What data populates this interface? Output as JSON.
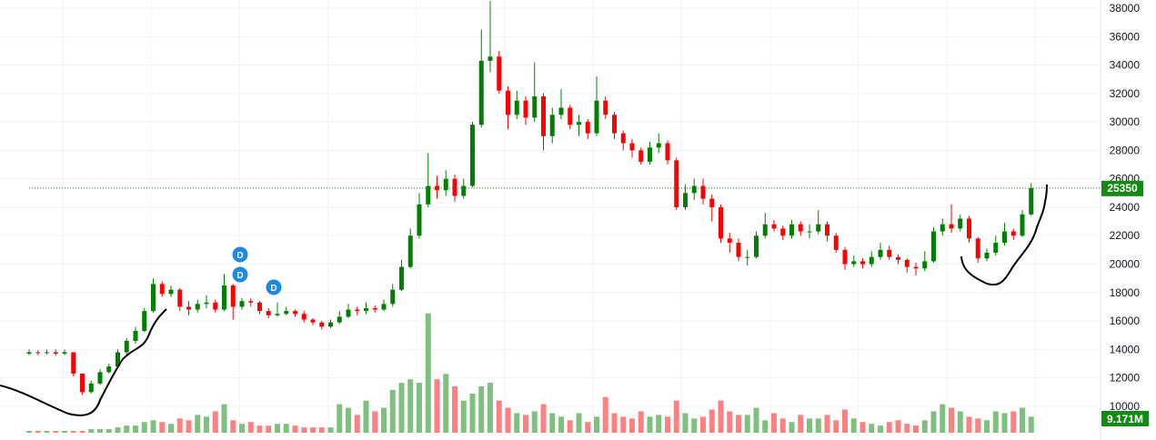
{
  "chart_data": {
    "type": "candlestick",
    "ylim": [
      10000,
      38000
    ],
    "y_ticks": [
      10000,
      12000,
      14000,
      16000,
      18000,
      20000,
      22000,
      24000,
      26000,
      28000,
      30000,
      32000,
      34000,
      36000,
      38000
    ],
    "grid": true,
    "last_price": {
      "label": "25350",
      "value": 25350
    },
    "last_volume": {
      "label": "9.171M",
      "value_millions": 9.171
    },
    "dividend_markers": [
      {
        "label": "D",
        "candle": 25,
        "price_offset": 3
      },
      {
        "label": "D",
        "candle": 25,
        "price_offset": 2
      },
      {
        "label": "D",
        "candle": 28,
        "price_offset": 1
      }
    ],
    "colors": {
      "up": "#008000",
      "down": "#ff0000",
      "up_volume": "#7fc07f",
      "down_volume": "#ff8080",
      "badge": "#1e88e5",
      "last": "#138a13"
    },
    "open": [
      13700,
      13800,
      13750,
      13800,
      13700,
      13800,
      12300,
      11000,
      11600,
      12400,
      12800,
      13800,
      14600,
      15300,
      16700,
      18600,
      17900,
      18200,
      17000,
      16800,
      17200,
      17300,
      16800,
      18500,
      17000,
      17400,
      17300,
      16700,
      16400,
      16500,
      16700,
      16500,
      16100,
      15900,
      15600,
      15900,
      16300,
      16800,
      16700,
      16900,
      16800,
      17200,
      18200,
      19800,
      22000,
      24200,
      25500,
      25200,
      26000,
      24800,
      25500,
      29800,
      34300,
      34600,
      32200,
      30500,
      31500,
      30300,
      31800,
      29000,
      30500,
      31000,
      29800,
      30000,
      29200,
      31500,
      30500,
      29200,
      28500,
      28000,
      27200,
      28200,
      28500,
      27300,
      24000,
      25000,
      25500,
      24600,
      24000,
      21800,
      21500,
      20500,
      20500,
      22000,
      22800,
      22500,
      22000,
      22800,
      22300,
      22300,
      22800,
      22000,
      21000,
      20000,
      20200,
      20000,
      20500,
      21000,
      20500,
      20300,
      19800,
      19700,
      20200,
      22300,
      22800,
      22500,
      23200,
      21800,
      20400,
      20800,
      21500,
      22300,
      22000,
      23500
    ],
    "high": [
      14000,
      13950,
      14000,
      14000,
      14000,
      13800,
      12300,
      11800,
      12600,
      13000,
      14000,
      14800,
      15600,
      16900,
      19000,
      18800,
      18500,
      18300,
      17400,
      17500,
      17800,
      17500,
      19300,
      18600,
      17600,
      17600,
      17400,
      16900,
      17300,
      17000,
      16800,
      16700,
      16200,
      16000,
      16100,
      16700,
      17200,
      17000,
      17300,
      17100,
      17500,
      18600,
      20300,
      22500,
      25000,
      27800,
      26200,
      26600,
      26300,
      26000,
      30000,
      36500,
      38500,
      35000,
      32500,
      32200,
      31800,
      34200,
      32000,
      31000,
      32300,
      31200,
      30500,
      30200,
      33200,
      31800,
      30700,
      29400,
      28800,
      28200,
      28600,
      29200,
      28700,
      27500,
      25600,
      26000,
      26000,
      24900,
      24200,
      22200,
      21800,
      21000,
      22300,
      23600,
      23100,
      22700,
      23100,
      23000,
      22800,
      23800,
      23000,
      22200,
      21200,
      20600,
      20400,
      20900,
      21500,
      21300,
      20700,
      20400,
      20100,
      20900,
      22600,
      23200,
      24200,
      23500,
      23400,
      21900,
      21100,
      22000,
      22900,
      22500,
      23800,
      25700
    ],
    "low": [
      13600,
      13600,
      13650,
      13550,
      13600,
      12100,
      10800,
      10900,
      11500,
      12300,
      12700,
      13600,
      14400,
      15200,
      16600,
      17700,
      17700,
      16700,
      16400,
      16600,
      16900,
      16600,
      16700,
      16100,
      16800,
      17000,
      16500,
      16200,
      16300,
      16400,
      16300,
      15900,
      15700,
      15400,
      15500,
      15800,
      16200,
      16400,
      16500,
      16600,
      16700,
      17000,
      18100,
      19700,
      21800,
      24000,
      24600,
      24800,
      24400,
      24600,
      25400,
      29600,
      33500,
      32000,
      29500,
      30200,
      29800,
      30000,
      28000,
      28500,
      30200,
      29500,
      29000,
      28800,
      29000,
      30200,
      28800,
      28000,
      27500,
      27000,
      27000,
      27800,
      27000,
      23800,
      23800,
      24500,
      24200,
      23000,
      21500,
      20800,
      20200,
      19900,
      20400,
      21800,
      22300,
      21700,
      21800,
      22000,
      21800,
      22100,
      21600,
      20800,
      19600,
      19800,
      19700,
      19800,
      20300,
      20300,
      20000,
      19400,
      19200,
      19500,
      20100,
      22000,
      22200,
      22300,
      21500,
      20100,
      20200,
      20600,
      21300,
      21700,
      21900,
      23400
    ],
    "close": [
      13800,
      13750,
      13800,
      13700,
      13800,
      12300,
      11000,
      11600,
      12400,
      12800,
      13800,
      14600,
      15300,
      16700,
      18600,
      17900,
      18200,
      17000,
      16800,
      17200,
      17300,
      16800,
      18500,
      17000,
      17400,
      17300,
      16700,
      16400,
      16500,
      16700,
      16500,
      16100,
      15900,
      15600,
      15900,
      16300,
      16800,
      16700,
      16900,
      16800,
      17200,
      18200,
      19800,
      22000,
      24200,
      25500,
      25200,
      26000,
      24800,
      25500,
      29800,
      34300,
      34600,
      32200,
      30500,
      31500,
      30300,
      31800,
      29000,
      30500,
      31000,
      29800,
      30000,
      29200,
      31500,
      30500,
      29200,
      28500,
      28000,
      27200,
      28200,
      28500,
      27300,
      24000,
      25000,
      25500,
      24600,
      24000,
      21800,
      21500,
      20500,
      20500,
      22000,
      22800,
      22500,
      22000,
      22800,
      22300,
      22300,
      22800,
      22000,
      21000,
      20000,
      20200,
      20000,
      20500,
      21000,
      20500,
      20300,
      19800,
      19700,
      20200,
      22300,
      22800,
      22500,
      23200,
      21800,
      20400,
      20800,
      21500,
      22300,
      22000,
      23500,
      25350
    ],
    "volume_millions": [
      1,
      1,
      1,
      1,
      1,
      1,
      1,
      2,
      2,
      2,
      3,
      4,
      4,
      6,
      7,
      6,
      5,
      8,
      7,
      10,
      9,
      12,
      16,
      7,
      5,
      6,
      4,
      4,
      5,
      5,
      4,
      3,
      3,
      3,
      3,
      16,
      14,
      10,
      18,
      12,
      14,
      24,
      28,
      30,
      28,
      67,
      30,
      33,
      26,
      18,
      22,
      26,
      28,
      18,
      14,
      11,
      10,
      12,
      16,
      11,
      9,
      7,
      11,
      6,
      9,
      20,
      11,
      9,
      8,
      12,
      9,
      10,
      9,
      18,
      11,
      8,
      9,
      13,
      18,
      12,
      10,
      10,
      14,
      7,
      11,
      8,
      6,
      10,
      8,
      8,
      10,
      7,
      13,
      8,
      6,
      5,
      4,
      6,
      7,
      5,
      4,
      7,
      12,
      16,
      14,
      12,
      9,
      8,
      7,
      12,
      11,
      12,
      14,
      9
    ]
  }
}
